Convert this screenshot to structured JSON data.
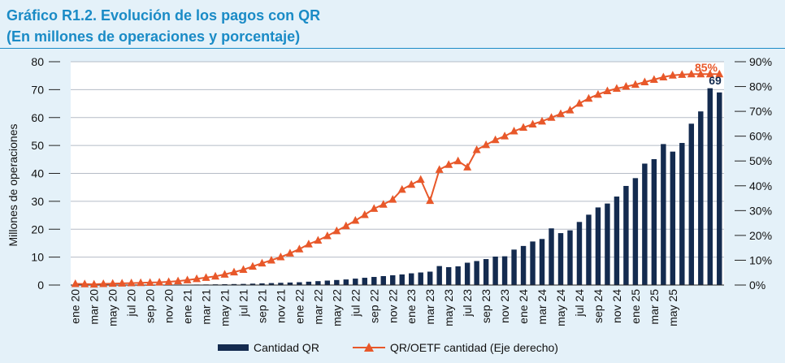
{
  "title": {
    "line1": "Gráfico R1.2. Evolución de los pagos con QR",
    "line2": "(En millones de operaciones y porcentaje)"
  },
  "colors": {
    "bar": "#142b4f",
    "line": "#e8582a",
    "grid": "#b5bcc6",
    "title": "#1a8bc6",
    "background": "#e4f1f9"
  },
  "chart_data": {
    "type": "bar",
    "ylabel": "Millones de operaciones",
    "ylim": [
      0,
      80
    ],
    "y2lim": [
      0,
      90
    ],
    "yticks": [
      "0",
      "10",
      "20",
      "30",
      "40",
      "50",
      "60",
      "70",
      "80"
    ],
    "y2ticks": [
      "0%",
      "10%",
      "20%",
      "30%",
      "40%",
      "50%",
      "60%",
      "70%",
      "80%",
      "90%"
    ],
    "xtick_labels": [
      "ene 20",
      "mar 20",
      "may 20",
      "jul 20",
      "sep 20",
      "nov 20",
      "ene 21",
      "mar 21",
      "may 21",
      "jul 21",
      "sep 21",
      "nov 21",
      "ene 22",
      "mar 22",
      "may 22",
      "jul 22",
      "sep 22",
      "nov 22",
      "ene 23",
      "mar 23",
      "may 23",
      "jul 23",
      "sep 23",
      "nov 23",
      "ene 24",
      "mar 24",
      "may 24",
      "jul 24",
      "sep 24",
      "nov 24",
      "ene 25",
      "mar 25",
      "may 25"
    ],
    "series": [
      {
        "name": "Cantidad QR",
        "type": "bar",
        "values": [
          0.05,
          0.05,
          0.05,
          0.05,
          0.06,
          0.07,
          0.08,
          0.09,
          0.1,
          0.1,
          0.12,
          0.14,
          0.15,
          0.17,
          0.2,
          0.25,
          0.3,
          0.35,
          0.4,
          0.5,
          0.6,
          0.7,
          0.8,
          0.9,
          1.0,
          1.2,
          1.4,
          1.6,
          1.8,
          2.0,
          2.3,
          2.6,
          2.9,
          3.2,
          3.5,
          3.8,
          4.2,
          4.5,
          4.8,
          6.8,
          6.4,
          6.7,
          8.0,
          8.6,
          9.3,
          10.2,
          10.3,
          12.7,
          14.0,
          15.6,
          16.5,
          20.3,
          18.6,
          19.6,
          22.6,
          25.2,
          27.8,
          29.2,
          31.7,
          35.5,
          38.3,
          43.5,
          45.1,
          50.5,
          47.8,
          50.9,
          57.8,
          62.2,
          70.5,
          69.0
        ]
      },
      {
        "name": "QR/OETF cantidad (Eje derecho)",
        "type": "line",
        "axis": "right",
        "values": [
          0.5,
          0.4,
          0.3,
          0.5,
          0.6,
          0.7,
          0.8,
          0.9,
          1.0,
          1.1,
          1.3,
          1.6,
          2.0,
          2.5,
          3.0,
          3.5,
          4.3,
          5.2,
          6.2,
          7.5,
          8.8,
          10.0,
          11.3,
          12.8,
          14.5,
          16.5,
          18.0,
          19.8,
          21.8,
          23.8,
          26.0,
          28.3,
          30.8,
          32.5,
          34.5,
          38.5,
          40.5,
          42.5,
          34.0,
          46.5,
          48.5,
          50.0,
          47.5,
          54.5,
          56.5,
          58.5,
          60.0,
          62.0,
          63.5,
          64.8,
          66.0,
          67.5,
          69.0,
          70.5,
          73.2,
          75.2,
          76.8,
          78.2,
          79.2,
          80.0,
          80.8,
          81.8,
          82.8,
          83.8,
          84.5,
          84.8,
          85.0,
          85.0,
          85.0,
          85.0
        ],
        "annotation": "85%"
      }
    ],
    "bar_annotation": "69"
  },
  "legend": {
    "bar_label": "Cantidad QR",
    "line_label": "QR/OETF cantidad (Eje derecho)"
  }
}
